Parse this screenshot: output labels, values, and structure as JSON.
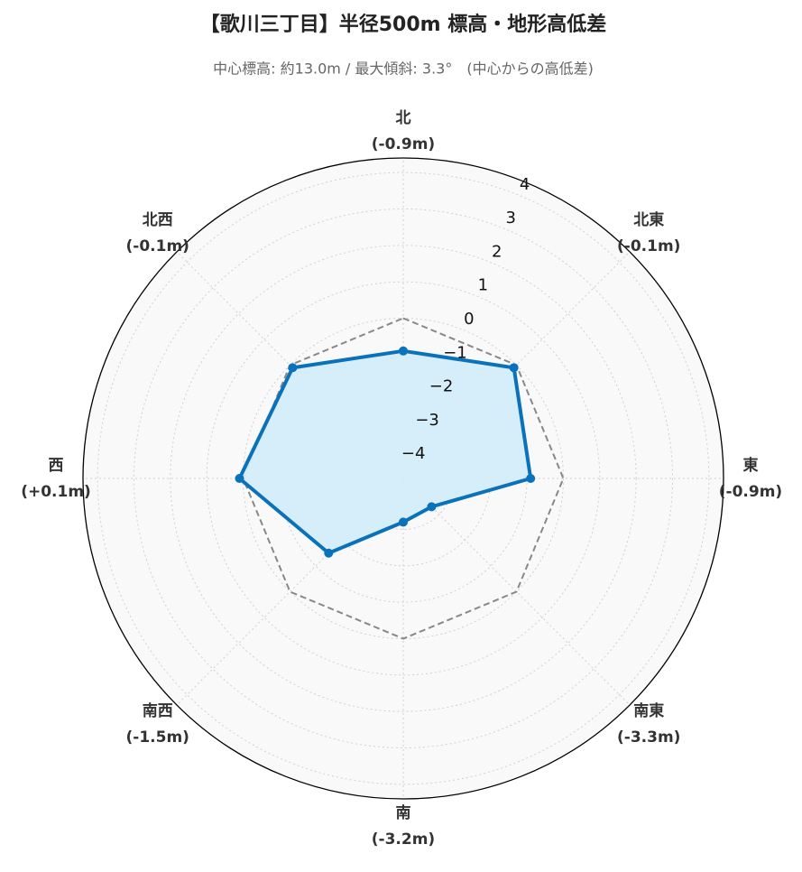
{
  "chart_data": {
    "type": "radar",
    "title": "【歌川三丁目】半径500m 標高・地形高低差",
    "subtitle": "中心標高: 約13.0m / 最大傾斜: 3.3°　(中心からの高低差)",
    "categories": [
      "北",
      "北東",
      "東",
      "南東",
      "南",
      "南西",
      "西",
      "北西"
    ],
    "values": [
      -0.9,
      -0.1,
      -0.9,
      -3.3,
      -3.2,
      -1.5,
      0.1,
      -0.1
    ],
    "value_labels": [
      "(-0.9m)",
      "(-0.1m)",
      "(-0.9m)",
      "(-3.3m)",
      "(-3.2m)",
      "(-1.5m)",
      "(+0.1m)",
      "(-0.1m)"
    ],
    "color": "#0a72ba",
    "fill_color": "#d4edf9",
    "reference_value": 0,
    "rlim": [
      -4.4,
      4.4
    ],
    "rticks": [
      {
        "value": -4,
        "label": "−4"
      },
      {
        "value": -3,
        "label": "−3"
      },
      {
        "value": -2,
        "label": "−2"
      },
      {
        "value": -1,
        "label": "−1"
      },
      0,
      1,
      2,
      3,
      4
    ],
    "grid": true
  }
}
